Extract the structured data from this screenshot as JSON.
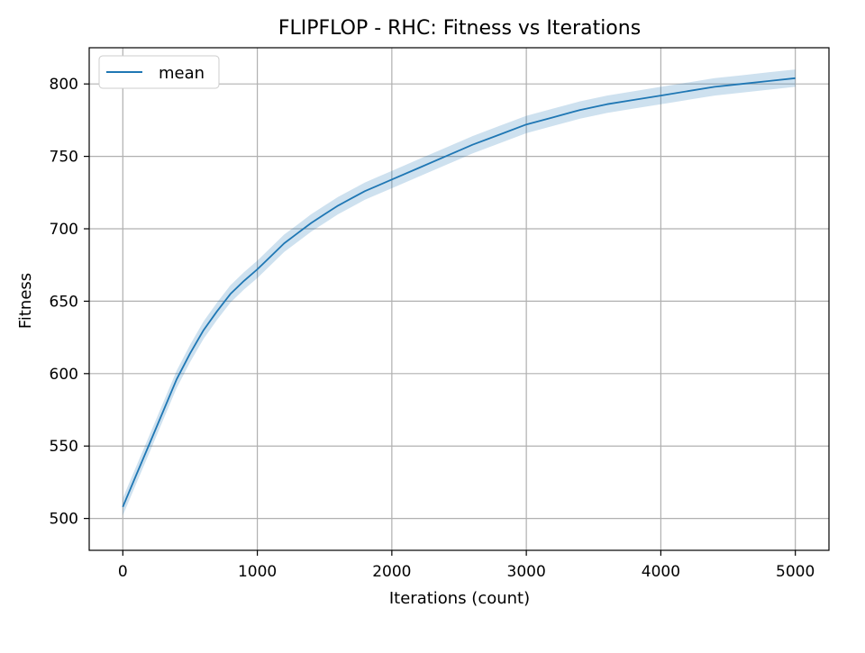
{
  "chart_data": {
    "type": "line",
    "title": "FLIPFLOP - RHC: Fitness vs Iterations",
    "xlabel": "Iterations (count)",
    "ylabel": "Fitness",
    "xlim": [
      -250,
      5250
    ],
    "ylim": [
      478,
      825
    ],
    "xticks": [
      0,
      1000,
      2000,
      3000,
      4000,
      5000
    ],
    "yticks": [
      500,
      550,
      600,
      650,
      700,
      750,
      800
    ],
    "grid": true,
    "legend": {
      "placement": "top-left",
      "entries": [
        "mean"
      ]
    },
    "colors": {
      "line": "#1f77b4",
      "band": "#1f77b4",
      "grid": "#b0b0b0"
    },
    "series": [
      {
        "name": "mean",
        "band_half_width": 6,
        "x": [
          0,
          100,
          200,
          300,
          400,
          500,
          600,
          700,
          800,
          900,
          1000,
          1100,
          1200,
          1300,
          1400,
          1500,
          1600,
          1700,
          1800,
          1900,
          2000,
          2200,
          2400,
          2600,
          2800,
          3000,
          3200,
          3400,
          3600,
          3800,
          4000,
          4200,
          4400,
          4600,
          4800,
          5000
        ],
        "y": [
          508,
          530,
          552,
          574,
          596,
          614,
          630,
          643,
          655,
          664,
          672,
          681,
          690,
          697,
          704,
          710,
          716,
          721,
          726,
          730,
          734,
          742,
          750,
          758,
          765,
          772,
          777,
          782,
          786,
          789,
          792,
          795,
          798,
          800,
          802,
          804
        ]
      }
    ]
  }
}
